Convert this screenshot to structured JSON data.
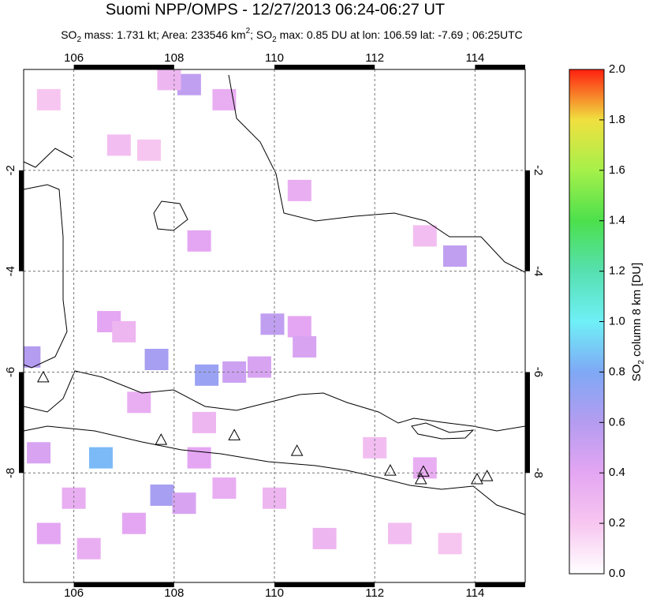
{
  "chart_data": {
    "type": "map",
    "title": "Suomi NPP/OMPS - 12/27/2013 06:24-06:27 UT",
    "subtitle": [
      "SO",
      "2",
      " mass: 1.731 kt; Area: 233546 km",
      "2",
      "; SO",
      "2",
      " max: 0.85 DU at lon: 106.59 lat: -7.69 ; 06:25UTC"
    ],
    "xlim": [
      105,
      115
    ],
    "ylim": [
      -10.17,
      0
    ],
    "xticks": [
      106,
      108,
      110,
      112,
      114
    ],
    "yticks": [
      -2,
      -4,
      -6,
      -8
    ],
    "grid": true,
    "colorbar": {
      "label": [
        "SO",
        "2",
        " column 8 km [DU]"
      ],
      "lim": [
        0,
        2
      ],
      "ticks": [
        {
          "value": 0,
          "label": "0.0"
        },
        0.2,
        0.4,
        0.6,
        0.8,
        {
          "value": 1,
          "label": "1.0"
        },
        1.2,
        1.4,
        1.6,
        1.8,
        {
          "value": 2,
          "label": "2.0"
        }
      ],
      "colormap": [
        "#ffffff",
        "#f7c6f0",
        "#e4a6f2",
        "#b49cf0",
        "#7fa8f5",
        "#6ff0f7",
        "#56e0b0",
        "#4ce04c",
        "#a6f04a",
        "#f0e040",
        "#ff2010"
      ]
    },
    "cells": [
      {
        "lon": 108.3,
        "lat": -0.3,
        "value": 0.55
      },
      {
        "lon": 109.0,
        "lat": -0.6,
        "value": 0.35
      },
      {
        "lon": 107.9,
        "lat": -0.2,
        "value": 0.3
      },
      {
        "lon": 105.5,
        "lat": -0.6,
        "value": 0.2
      },
      {
        "lon": 106.9,
        "lat": -1.5,
        "value": 0.25
      },
      {
        "lon": 107.5,
        "lat": -1.6,
        "value": 0.2
      },
      {
        "lon": 110.5,
        "lat": -2.4,
        "value": 0.35
      },
      {
        "lon": 108.5,
        "lat": -3.4,
        "value": 0.4
      },
      {
        "lon": 113.6,
        "lat": -3.7,
        "value": 0.55
      },
      {
        "lon": 113.0,
        "lat": -3.3,
        "value": 0.25
      },
      {
        "lon": 107.65,
        "lat": -5.75,
        "value": 0.65
      },
      {
        "lon": 108.65,
        "lat": -6.06,
        "value": 0.7
      },
      {
        "lon": 109.2,
        "lat": -6.0,
        "value": 0.5
      },
      {
        "lon": 109.7,
        "lat": -5.9,
        "value": 0.45
      },
      {
        "lon": 109.96,
        "lat": -5.05,
        "value": 0.55
      },
      {
        "lon": 110.5,
        "lat": -5.1,
        "value": 0.4
      },
      {
        "lon": 110.6,
        "lat": -5.5,
        "value": 0.45
      },
      {
        "lon": 105.1,
        "lat": -5.7,
        "value": 0.6
      },
      {
        "lon": 106.7,
        "lat": -5.0,
        "value": 0.4
      },
      {
        "lon": 107.0,
        "lat": -5.2,
        "value": 0.3
      },
      {
        "lon": 106.54,
        "lat": -7.7,
        "value": 0.85
      },
      {
        "lon": 107.76,
        "lat": -8.44,
        "value": 0.65
      },
      {
        "lon": 105.3,
        "lat": -7.6,
        "value": 0.45
      },
      {
        "lon": 106.0,
        "lat": -8.5,
        "value": 0.35
      },
      {
        "lon": 107.2,
        "lat": -9.0,
        "value": 0.4
      },
      {
        "lon": 108.2,
        "lat": -8.6,
        "value": 0.45
      },
      {
        "lon": 108.5,
        "lat": -7.7,
        "value": 0.4
      },
      {
        "lon": 109.0,
        "lat": -8.3,
        "value": 0.35
      },
      {
        "lon": 110.0,
        "lat": -8.5,
        "value": 0.3
      },
      {
        "lon": 111.0,
        "lat": -9.3,
        "value": 0.3
      },
      {
        "lon": 112.5,
        "lat": -9.2,
        "value": 0.25
      },
      {
        "lon": 113.5,
        "lat": -9.4,
        "value": 0.2
      },
      {
        "lon": 106.3,
        "lat": -9.5,
        "value": 0.35
      },
      {
        "lon": 105.5,
        "lat": -9.2,
        "value": 0.4
      },
      {
        "lon": 112.0,
        "lat": -7.5,
        "value": 0.25
      },
      {
        "lon": 113.0,
        "lat": -7.9,
        "value": 0.35
      },
      {
        "lon": 108.6,
        "lat": -7.0,
        "value": 0.3
      },
      {
        "lon": 107.3,
        "lat": -6.6,
        "value": 0.35
      }
    ],
    "volcanoes": [
      {
        "lon": 105.39,
        "lat": -6.1
      },
      {
        "lon": 107.74,
        "lat": -7.34
      },
      {
        "lon": 109.2,
        "lat": -7.25
      },
      {
        "lon": 110.45,
        "lat": -7.56
      },
      {
        "lon": 112.31,
        "lat": -7.95
      },
      {
        "lon": 112.97,
        "lat": -7.97
      },
      {
        "lon": 112.92,
        "lat": -8.12
      },
      {
        "lon": 114.04,
        "lat": -8.12
      },
      {
        "lon": 114.24,
        "lat": -8.06
      }
    ]
  }
}
